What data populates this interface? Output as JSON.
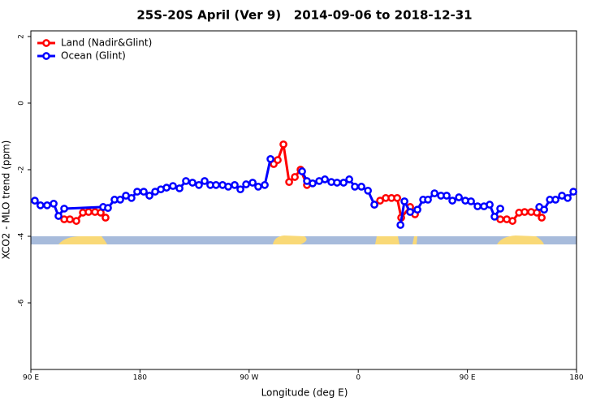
{
  "chart_data": {
    "type": "line",
    "title": "25S-20S April (Ver 9)   2014-09-06 to 2018-12-31",
    "x_label": "Longitude (deg E)",
    "y_label": "XCO2 - MLO trend (ppm)",
    "xlim": [
      90,
      540
    ],
    "ylim": [
      -8,
      2.17
    ],
    "xticks": [
      {
        "value": 90,
        "label": "90 E"
      },
      180,
      {
        "value": 270,
        "label": "90 W"
      },
      {
        "value": 360,
        "label": "0"
      },
      {
        "value": 450,
        "label": "90 E"
      },
      {
        "value": 540,
        "label": "180"
      }
    ],
    "yticks": [
      2,
      0,
      -2,
      -4,
      -6
    ],
    "legend": "top-left",
    "series": [
      {
        "name": "Land (Nadir&Glint)",
        "color": "#ff0000",
        "x": [
          117.5,
          122.2,
          127.5,
          132.9,
          137.6,
          142.9,
          147.6,
          151.6,
          null,
          290.3,
          293.6,
          298.3,
          303.0,
          307.7,
          312.4,
          317.7,
          null,
          373.3,
          378.0,
          382.7,
          387.4,
          392.1,
          395.4,
          402.8,
          406.8,
          null,
          477.1,
          482.5,
          487.2,
          492.6,
          497.2,
          502.6,
          507.3,
          511.3
        ],
        "values": [
          -3.49,
          -3.49,
          -3.54,
          -3.29,
          -3.27,
          -3.27,
          -3.29,
          -3.44,
          null,
          -1.83,
          -1.71,
          -1.24,
          -2.37,
          -2.22,
          -2.0,
          -2.46,
          null,
          -3.05,
          -2.93,
          -2.85,
          -2.85,
          -2.85,
          -3.44,
          -3.12,
          -3.34,
          null,
          -3.49,
          -3.49,
          -3.54,
          -3.29,
          -3.27,
          -3.27,
          -3.29,
          -3.44
        ]
      },
      {
        "name": "Ocean (Glint)",
        "color": "#0000ff",
        "x": [
          93.3,
          97.9,
          103.4,
          108.8,
          112.8,
          117.5,
          149.6,
          153.6,
          159.0,
          163.7,
          168.4,
          173.0,
          177.7,
          183.1,
          187.8,
          192.5,
          197.2,
          201.9,
          207.2,
          212.6,
          217.9,
          223.3,
          228.6,
          233.3,
          238.0,
          242.7,
          248.1,
          252.8,
          258.1,
          262.8,
          267.5,
          272.9,
          277.5,
          282.9,
          287.6,
          null,
          313.7,
          317.7,
          322.4,
          327.8,
          332.5,
          337.8,
          342.5,
          347.9,
          352.6,
          357.2,
          362.6,
          368.0,
          373.3,
          null,
          394.8,
          398.1,
          402.8,
          408.8,
          413.5,
          417.5,
          422.9,
          428.2,
          432.9,
          437.6,
          443.0,
          448.3,
          453.0,
          458.4,
          463.7,
          468.4,
          472.4,
          477.1,
          null,
          509.3,
          513.3,
          518.0,
          522.7,
          528.0,
          532.7,
          537.4
        ],
        "values": [
          -2.93,
          -3.07,
          -3.07,
          -3.02,
          -3.39,
          -3.17,
          -3.12,
          -3.15,
          -2.9,
          -2.9,
          -2.78,
          -2.85,
          -2.66,
          -2.66,
          -2.78,
          -2.66,
          -2.59,
          -2.54,
          -2.49,
          -2.56,
          -2.34,
          -2.39,
          -2.46,
          -2.34,
          -2.46,
          -2.46,
          -2.46,
          -2.51,
          -2.46,
          -2.59,
          -2.44,
          -2.39,
          -2.51,
          -2.46,
          -1.68,
          null,
          -2.05,
          -2.34,
          -2.41,
          -2.34,
          -2.29,
          -2.37,
          -2.39,
          -2.39,
          -2.29,
          -2.51,
          -2.51,
          -2.63,
          -3.05,
          null,
          -3.66,
          -2.95,
          -3.27,
          -3.2,
          -2.9,
          -2.9,
          -2.71,
          -2.78,
          -2.78,
          -2.93,
          -2.83,
          -2.93,
          -2.95,
          -3.1,
          -3.1,
          -3.05,
          -3.41,
          -3.17,
          null,
          -3.12,
          -3.2,
          -2.9,
          -2.9,
          -2.78,
          -2.85,
          -2.66
        ]
      }
    ]
  }
}
